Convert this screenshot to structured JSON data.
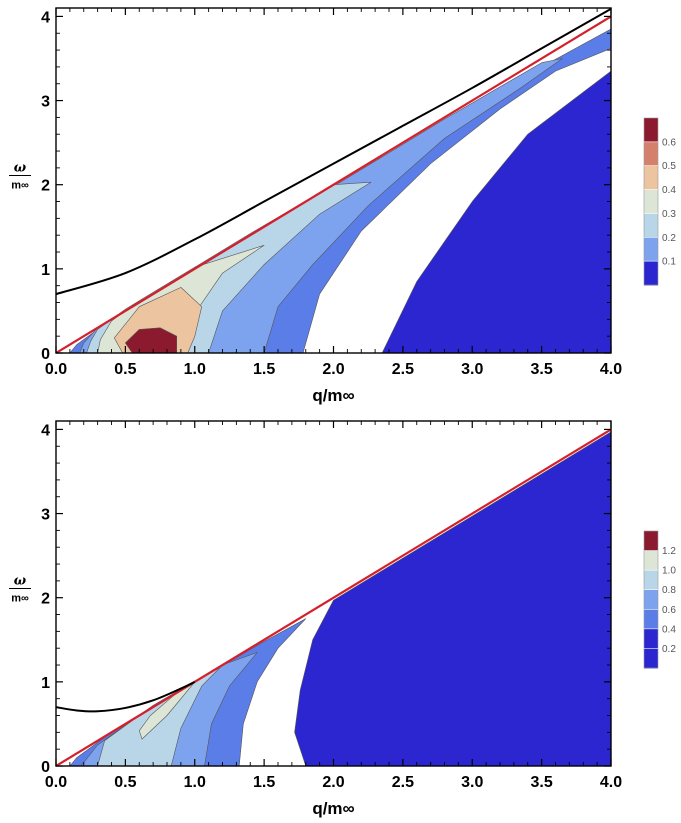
{
  "colors": {
    "level_0": "#2b26cf",
    "level_1": "#5b7de8",
    "level_2": "#7ea3ee",
    "level_3": "#b9d6e8",
    "level_4": "#dde5d6",
    "level_5": "#ecc49f",
    "level_6": "#d5806c",
    "level_7": "#8c1a2f",
    "boundary_line": "#d4202c",
    "dispersion_line": "#000000",
    "contour_line": "#555555"
  },
  "chart_data": [
    {
      "type": "contour",
      "title": "",
      "xlabel": "q/m∞",
      "ylabel": {
        "numerator": "ω",
        "denominator": "m∞"
      },
      "xlim": [
        0,
        4
      ],
      "ylim": [
        0,
        4.1
      ],
      "x_ticks": [
        "0.0",
        "0.5",
        "1.0",
        "1.5",
        "2.0",
        "2.5",
        "3.0",
        "3.5",
        "4.0"
      ],
      "y_ticks": [
        "0",
        "1",
        "2",
        "3",
        "4"
      ],
      "boundary": "ω = q",
      "dispersion_curve": [
        [
          0,
          0.7
        ],
        [
          0.5,
          0.95
        ],
        [
          1,
          1.35
        ],
        [
          1.5,
          1.8
        ],
        [
          2,
          2.25
        ],
        [
          2.5,
          2.7
        ],
        [
          3,
          3.15
        ],
        [
          3.5,
          3.62
        ],
        [
          4,
          4.09
        ]
      ],
      "levels": [
        {
          "label": "0.1",
          "color_key": "level_0",
          "region": [
            [
              2.35,
              0
            ],
            [
              2.6,
              0.85
            ],
            [
              3.0,
              1.8
            ],
            [
              3.4,
              2.6
            ],
            [
              4.0,
              3.35
            ],
            [
              4.0,
              0
            ]
          ]
        },
        {
          "label": "0.2",
          "color_key": "level_1",
          "region": [
            [
              1.78,
              0
            ],
            [
              1.9,
              0.7
            ],
            [
              2.2,
              1.45
            ],
            [
              2.7,
              2.25
            ],
            [
              3.2,
              2.9
            ],
            [
              3.6,
              3.35
            ],
            [
              4.0,
              3.62
            ],
            [
              4.0,
              3.85
            ],
            [
              3.5,
              3.4
            ],
            [
              2.8,
              2.72
            ],
            [
              2.0,
              1.93
            ],
            [
              1.0,
              0.96
            ],
            [
              0.3,
              0.28
            ],
            [
              0.15,
              0.1
            ],
            [
              0.1,
              0
            ]
          ]
        },
        {
          "label": "0.3",
          "color_key": "level_2",
          "region": [
            [
              1.5,
              0
            ],
            [
              1.6,
              0.55
            ],
            [
              1.85,
              1.05
            ],
            [
              2.25,
              1.75
            ],
            [
              2.8,
              2.55
            ],
            [
              3.35,
              3.15
            ],
            [
              3.65,
              3.5
            ],
            [
              3.5,
              3.45
            ],
            [
              2.8,
              2.78
            ],
            [
              2.0,
              1.98
            ],
            [
              1.0,
              1.0
            ],
            [
              0.3,
              0.3
            ],
            [
              0.2,
              0.12
            ],
            [
              0.17,
              0
            ]
          ]
        },
        {
          "label": "0.4",
          "color_key": "level_3",
          "region": [
            [
              1.1,
              0
            ],
            [
              1.2,
              0.5
            ],
            [
              1.5,
              1.05
            ],
            [
              1.9,
              1.65
            ],
            [
              2.27,
              2.03
            ],
            [
              2.0,
              2.0
            ],
            [
              1.4,
              1.42
            ],
            [
              1.0,
              1.02
            ],
            [
              0.5,
              0.52
            ],
            [
              0.3,
              0.28
            ],
            [
              0.25,
              0.14
            ],
            [
              0.22,
              0
            ]
          ]
        },
        {
          "label": "0.5",
          "color_key": "level_4",
          "region": [
            [
              0.88,
              0
            ],
            [
              0.95,
              0.35
            ],
            [
              1.2,
              0.95
            ],
            [
              1.5,
              1.28
            ],
            [
              1.0,
              1.02
            ],
            [
              0.6,
              0.62
            ],
            [
              0.4,
              0.38
            ],
            [
              0.32,
              0.16
            ],
            [
              0.3,
              0
            ]
          ]
        },
        {
          "label": "0.6",
          "color_key": "level_5",
          "region": [
            [
              0.48,
              0
            ],
            [
              0.42,
              0.18
            ],
            [
              0.6,
              0.55
            ],
            [
              0.9,
              0.78
            ],
            [
              1.05,
              0.55
            ],
            [
              1.0,
              0.2
            ],
            [
              0.95,
              0
            ]
          ]
        },
        {
          "label": "",
          "color_key": "level_7",
          "region": [
            [
              0.55,
              0
            ],
            [
              0.5,
              0.12
            ],
            [
              0.6,
              0.28
            ],
            [
              0.75,
              0.3
            ],
            [
              0.87,
              0.2
            ],
            [
              0.87,
              0
            ]
          ]
        }
      ],
      "colorbar": {
        "labels": [
          "0.6",
          "0.5",
          "0.4",
          "0.3",
          "0.2",
          "0.1"
        ],
        "color_keys": [
          "level_7",
          "level_6",
          "level_5",
          "level_4",
          "level_3",
          "level_2",
          "level_0"
        ]
      }
    },
    {
      "type": "contour",
      "title": "",
      "xlabel": "q/m∞",
      "ylabel": {
        "numerator": "ω",
        "denominator": "m∞"
      },
      "xlim": [
        0,
        4
      ],
      "ylim": [
        0,
        4.1
      ],
      "x_ticks": [
        "0.0",
        "0.5",
        "1.0",
        "1.5",
        "2.0",
        "2.5",
        "3.0",
        "3.5",
        "4.0"
      ],
      "y_ticks": [
        "0",
        "1",
        "2",
        "3",
        "4"
      ],
      "boundary": "ω = q",
      "dispersion_curve": [
        [
          0,
          0.7
        ],
        [
          0.15,
          0.66
        ],
        [
          0.3,
          0.65
        ],
        [
          0.5,
          0.69
        ],
        [
          0.7,
          0.78
        ],
        [
          0.9,
          0.92
        ],
        [
          1.0,
          1.0
        ]
      ],
      "levels": [
        {
          "label": "0.2",
          "color_key": "level_0",
          "region": [
            [
              1.8,
              0
            ],
            [
              1.72,
              0.4
            ],
            [
              1.76,
              0.9
            ],
            [
              1.85,
              1.5
            ],
            [
              2.0,
              1.97
            ],
            [
              4.0,
              3.97
            ],
            [
              4.0,
              0
            ]
          ]
        },
        {
          "label": "0.4",
          "color_key": "level_1",
          "region": [
            [
              1.32,
              0
            ],
            [
              1.35,
              0.5
            ],
            [
              1.45,
              1.0
            ],
            [
              1.6,
              1.4
            ],
            [
              1.8,
              1.75
            ],
            [
              1.5,
              1.48
            ],
            [
              1.0,
              1.0
            ],
            [
              0.4,
              0.4
            ],
            [
              0.15,
              0.1
            ],
            [
              0.1,
              0
            ]
          ]
        },
        {
          "label": "0.6",
          "color_key": "level_2",
          "region": [
            [
              1.07,
              0
            ],
            [
              1.12,
              0.5
            ],
            [
              1.25,
              0.95
            ],
            [
              1.45,
              1.35
            ],
            [
              1.2,
              1.2
            ],
            [
              0.7,
              0.72
            ],
            [
              0.3,
              0.25
            ],
            [
              0.18,
              0
            ]
          ]
        },
        {
          "label": "0.8",
          "color_key": "level_3",
          "region": [
            [
              0.83,
              0
            ],
            [
              0.9,
              0.45
            ],
            [
              1.05,
              0.95
            ],
            [
              1.2,
              1.2
            ],
            [
              1.0,
              1.0
            ],
            [
              0.6,
              0.6
            ],
            [
              0.35,
              0.3
            ],
            [
              0.3,
              0
            ]
          ]
        },
        {
          "label": "1.0",
          "color_key": "level_4",
          "region": [
            [
              0.62,
              0.32
            ],
            [
              0.8,
              0.6
            ],
            [
              1.0,
              1.0
            ],
            [
              0.85,
              0.84
            ],
            [
              0.68,
              0.6
            ],
            [
              0.6,
              0.42
            ]
          ]
        }
      ],
      "colorbar": {
        "labels": [
          "1.2",
          "1.0",
          "0.8",
          "0.6",
          "0.4",
          "0.2"
        ],
        "color_keys": [
          "level_7",
          "level_4",
          "level_3",
          "level_2",
          "level_1",
          "level_0",
          "level_0"
        ]
      }
    }
  ]
}
